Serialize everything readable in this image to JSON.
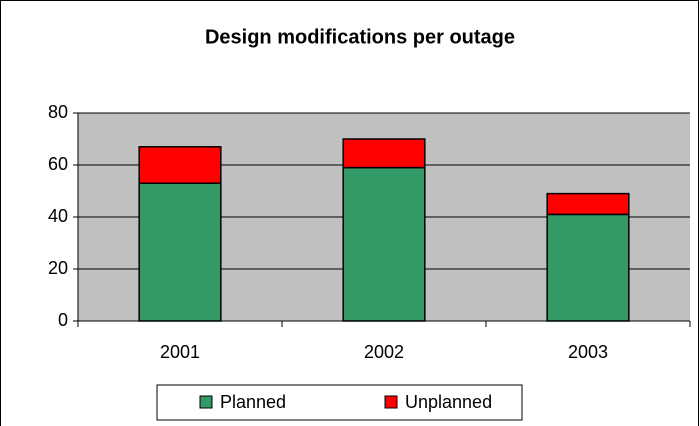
{
  "chart_data": {
    "type": "stacked_bar",
    "title": "Design modifications per outage",
    "categories": [
      "2001",
      "2002",
      "2003"
    ],
    "series": [
      {
        "name": "Planned",
        "color": "#339966",
        "values": [
          53,
          59,
          41
        ]
      },
      {
        "name": "Unplanned",
        "color": "#ff0000",
        "values": [
          14,
          11,
          8
        ]
      }
    ],
    "ylim": [
      0,
      80
    ],
    "yticks": [
      0,
      20,
      40,
      60,
      80
    ],
    "grid": true,
    "legend": "bottom"
  }
}
